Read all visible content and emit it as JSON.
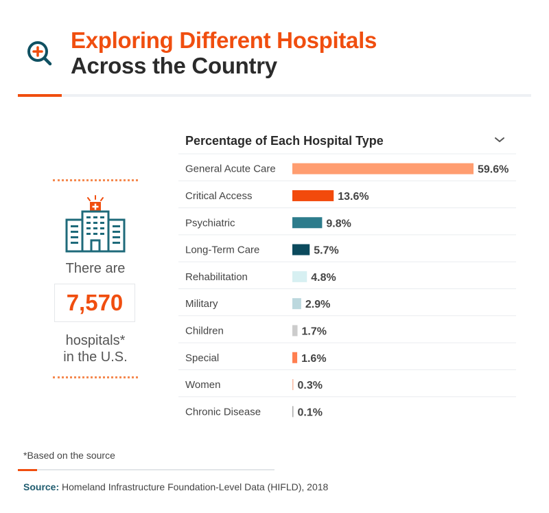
{
  "header": {
    "title_line1": "Exploring Different Hospitals",
    "title_line2": "Across the Country",
    "icon": "magnifier-plus-icon",
    "colors": {
      "accent": "#f04e0f",
      "teal": "#0f5061"
    }
  },
  "summary": {
    "icon": "hospital-building-icon",
    "prefix": "There are",
    "count": "7,570",
    "suffix_line1": "hospitals*",
    "suffix_line2": "in the U.S."
  },
  "chart_data": {
    "type": "bar",
    "orientation": "horizontal",
    "title": "Percentage of Each Hospital Type",
    "categories": [
      "General Acute Care",
      "Critical Access",
      "Psychiatric",
      "Long-Term Care",
      "Rehabilitation",
      "Military",
      "Children",
      "Special",
      "Women",
      "Chronic Disease"
    ],
    "values": [
      59.6,
      13.6,
      9.8,
      5.7,
      4.8,
      2.9,
      1.7,
      1.6,
      0.3,
      0.1
    ],
    "value_labels": [
      "59.6%",
      "13.6%",
      "9.8%",
      "5.7%",
      "4.8%",
      "2.9%",
      "1.7%",
      "1.6%",
      "0.3%",
      "0.1%"
    ],
    "colors": [
      "#ff9d70",
      "#f24a0c",
      "#2d7c8c",
      "#0b4a5d",
      "#d7f0f2",
      "#bcd8de",
      "#cccccc",
      "#ff7f50",
      "#f7b8a2",
      "#aaaaaa"
    ],
    "xlim": [
      0,
      59.6
    ],
    "xlabel": "",
    "ylabel": "",
    "grid": false
  },
  "footer": {
    "note": "*Based on the source",
    "source_label": "Source:",
    "source_text": " Homeland Infrastructure Foundation-Level Data (HIFLD), 2018"
  }
}
